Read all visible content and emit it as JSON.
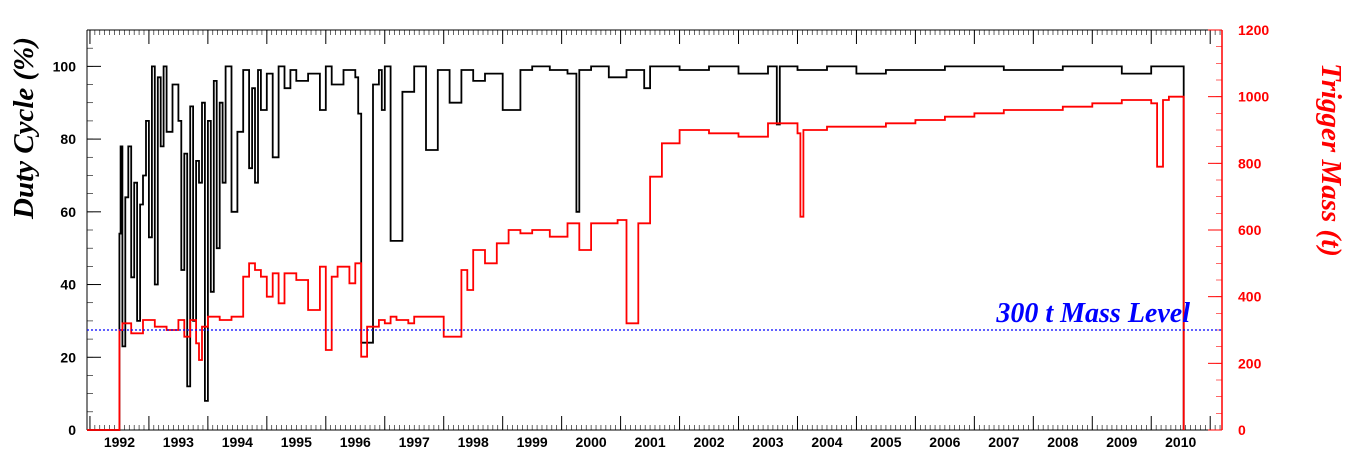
{
  "chart_data": {
    "type": "line",
    "xlabel": "",
    "x_categories": [
      "1992",
      "1993",
      "1994",
      "1995",
      "1996",
      "1997",
      "1998",
      "1999",
      "2000",
      "2001",
      "2002",
      "2003",
      "2004",
      "2005",
      "2006",
      "2007",
      "2008",
      "2009",
      "2010"
    ],
    "y_left": {
      "label": "Duty Cycle (%)",
      "range": [
        0,
        110
      ],
      "ticks": [
        "0",
        "20",
        "40",
        "60",
        "80",
        "100"
      ],
      "color": "#000000"
    },
    "y_right": {
      "label": "Trigger Mass (t)",
      "range": [
        0,
        1200
      ],
      "ticks": [
        "0",
        "200",
        "400",
        "600",
        "800",
        "1000",
        "1200"
      ],
      "color": "#ff0000"
    },
    "reference_line": {
      "label": "300 t Mass Level",
      "value": 300,
      "axis": "right",
      "color": "#0000ff",
      "style": "dotted"
    },
    "series": [
      {
        "axis": "left",
        "color": "#000000",
        "x": [
          1991.45,
          1992.0,
          1992.02,
          1992.05,
          1992.1,
          1992.15,
          1992.2,
          1992.25,
          1992.3,
          1992.35,
          1992.4,
          1992.45,
          1992.5,
          1992.55,
          1992.6,
          1992.65,
          1992.7,
          1992.75,
          1992.8,
          1992.9,
          1993.0,
          1993.05,
          1993.1,
          1993.15,
          1993.2,
          1993.25,
          1993.3,
          1993.35,
          1993.4,
          1993.45,
          1993.5,
          1993.55,
          1993.6,
          1993.65,
          1993.7,
          1993.75,
          1993.8,
          1993.9,
          1994.0,
          1994.1,
          1994.2,
          1994.25,
          1994.3,
          1994.35,
          1994.4,
          1994.5,
          1994.6,
          1994.7,
          1994.8,
          1994.9,
          1995.0,
          1995.2,
          1995.4,
          1995.5,
          1995.6,
          1995.8,
          1996.0,
          1996.05,
          1996.1,
          1996.3,
          1996.4,
          1996.45,
          1996.5,
          1996.6,
          1996.8,
          1997.0,
          1997.2,
          1997.4,
          1997.6,
          1997.8,
          1998.0,
          1998.2,
          1998.5,
          1998.8,
          1999.0,
          1999.3,
          1999.6,
          1999.75,
          1999.8,
          2000.0,
          2000.3,
          2000.6,
          2000.9,
          2001.0,
          2001.5,
          2002.0,
          2002.5,
          2003.0,
          2003.15,
          2003.2,
          2003.5,
          2004.0,
          2004.5,
          2005.0,
          2006.0,
          2007.0,
          2008.0,
          2009.0,
          2009.5,
          2010.0,
          2010.05
        ],
        "y": [
          0,
          54,
          78,
          23,
          64,
          78,
          42,
          68,
          30,
          62,
          70,
          85,
          53,
          100,
          40,
          97,
          78,
          100,
          82,
          95,
          85,
          44,
          76,
          12,
          89,
          30,
          74,
          68,
          90,
          8,
          85,
          38,
          96,
          50,
          90,
          68,
          100,
          60,
          82,
          99,
          72,
          94,
          68,
          99,
          88,
          98,
          75,
          100,
          94,
          99,
          96,
          98,
          88,
          100,
          95,
          99,
          97,
          87,
          24,
          95,
          99,
          88,
          100,
          52,
          93,
          100,
          77,
          99,
          90,
          99,
          96,
          98,
          88,
          99,
          100,
          99,
          98,
          60,
          99,
          100,
          97,
          99,
          94,
          100,
          99,
          100,
          98,
          100,
          84,
          100,
          99,
          100,
          98,
          99,
          100,
          99,
          100,
          98,
          100,
          100,
          0
        ]
      },
      {
        "axis": "right",
        "color": "#ff0000",
        "x": [
          1991.45,
          1992.0,
          1992.05,
          1992.2,
          1992.4,
          1992.6,
          1992.8,
          1993.0,
          1993.1,
          1993.2,
          1993.3,
          1993.35,
          1993.4,
          1993.5,
          1993.7,
          1993.9,
          1994.0,
          1994.1,
          1994.2,
          1994.3,
          1994.4,
          1994.5,
          1994.6,
          1994.7,
          1994.8,
          1995.0,
          1995.2,
          1995.4,
          1995.5,
          1995.6,
          1995.7,
          1995.9,
          1996.0,
          1996.1,
          1996.2,
          1996.4,
          1996.5,
          1996.6,
          1996.7,
          1996.9,
          1997.0,
          1997.2,
          1997.5,
          1997.8,
          1997.9,
          1998.0,
          1998.2,
          1998.4,
          1998.6,
          1998.8,
          1999.0,
          1999.3,
          1999.6,
          1999.8,
          2000.0,
          2000.3,
          2000.45,
          2000.6,
          2000.8,
          2001.0,
          2001.2,
          2001.5,
          2002.0,
          2002.5,
          2003.0,
          2003.5,
          2003.55,
          2003.6,
          2004.0,
          2004.5,
          2005.0,
          2005.5,
          2006.0,
          2006.5,
          2007.0,
          2008.0,
          2008.5,
          2009.0,
          2009.5,
          2009.6,
          2009.7,
          2009.8,
          2009.9,
          2010.0,
          2010.05
        ],
        "y": [
          0,
          300,
          320,
          290,
          330,
          310,
          300,
          330,
          280,
          330,
          260,
          210,
          310,
          340,
          330,
          340,
          340,
          460,
          500,
          480,
          460,
          400,
          470,
          380,
          470,
          450,
          360,
          490,
          240,
          460,
          490,
          440,
          500,
          220,
          310,
          330,
          320,
          340,
          330,
          320,
          340,
          340,
          280,
          480,
          420,
          540,
          500,
          560,
          600,
          590,
          600,
          580,
          620,
          540,
          620,
          620,
          630,
          320,
          620,
          760,
          860,
          900,
          890,
          880,
          920,
          890,
          640,
          900,
          910,
          910,
          920,
          930,
          940,
          950,
          960,
          970,
          980,
          990,
          980,
          790,
          990,
          1000,
          1000,
          1000,
          0
        ]
      }
    ]
  }
}
